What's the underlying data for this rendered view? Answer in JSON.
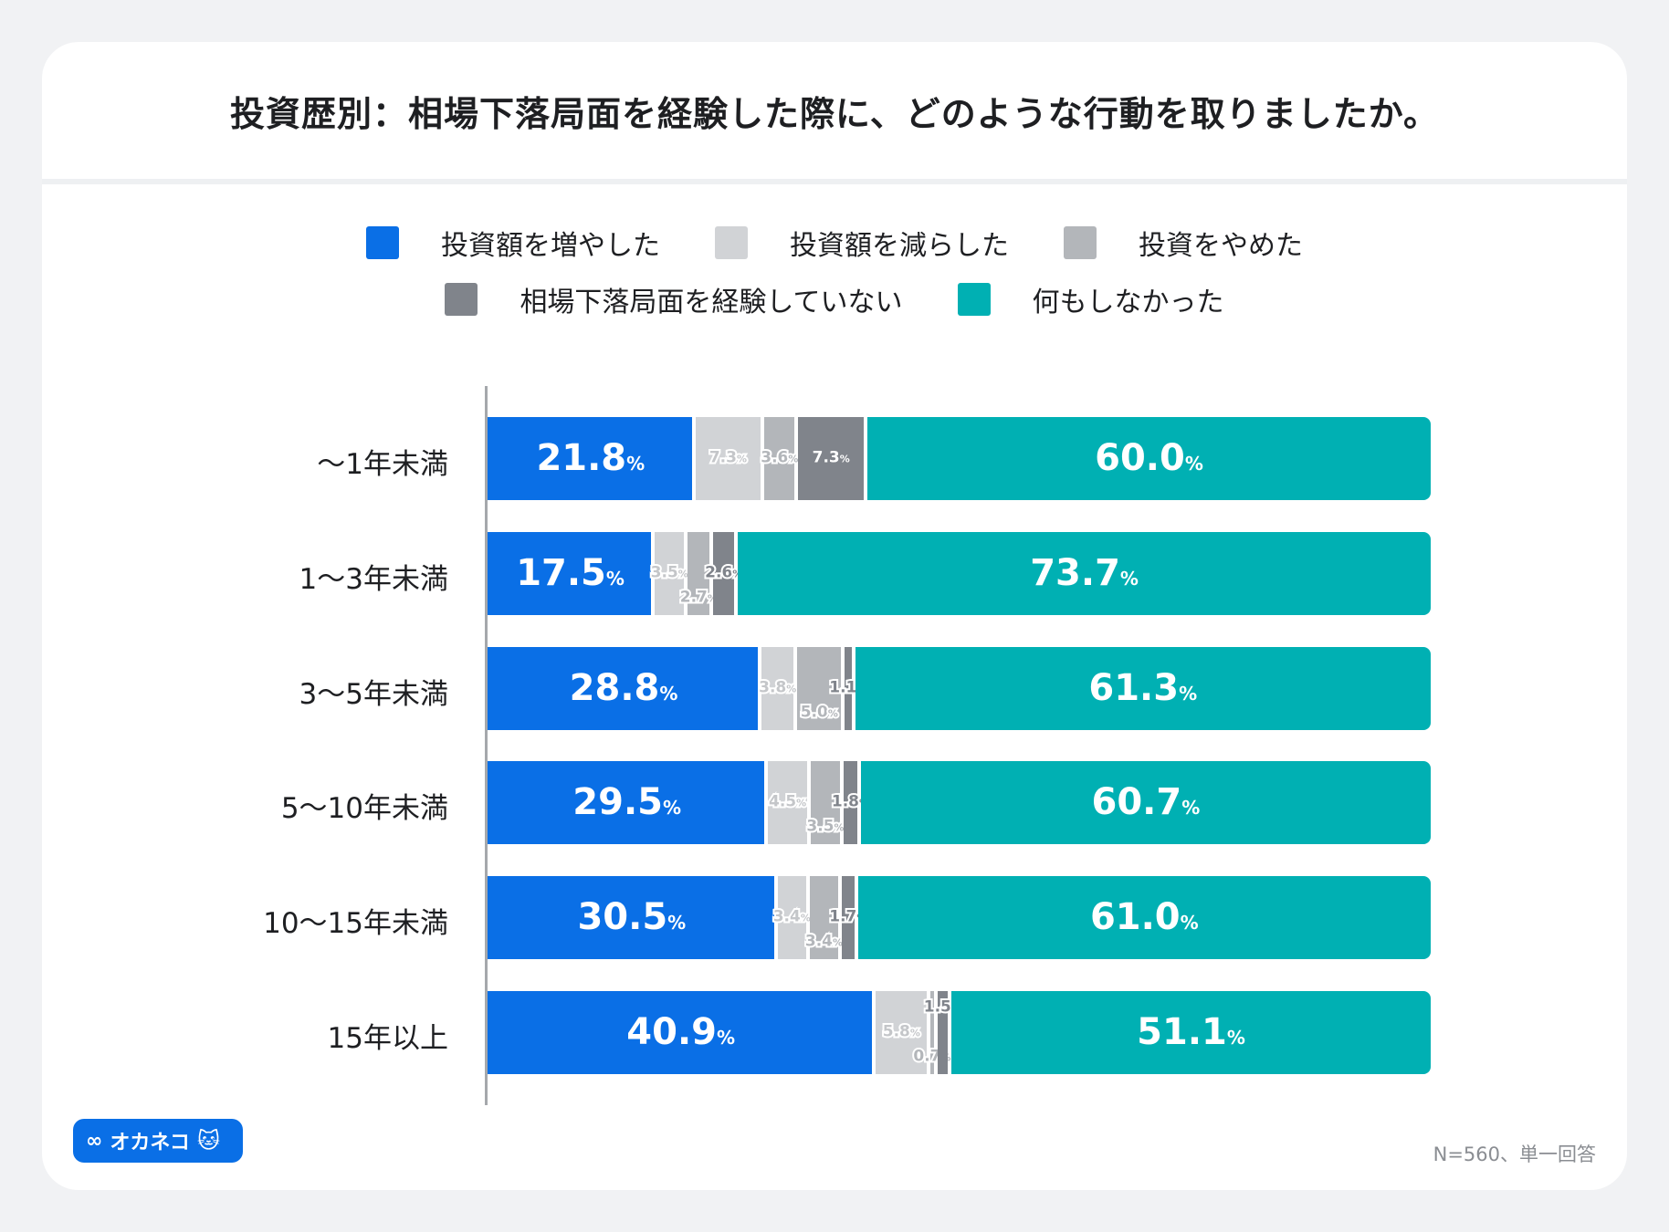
{
  "title": "投資歴別：相場下落局面を経験した際に、どのような行動を取りましたか。",
  "chart_data": {
    "type": "bar",
    "orientation": "horizontal",
    "stacked": true,
    "unit": "%",
    "legend_placement": "top",
    "categories": [
      "〜1年未満",
      "1〜3年未満",
      "3〜5年未満",
      "5〜10年未満",
      "10〜15年未満",
      "15年以上"
    ],
    "series": [
      {
        "name": "投資額を増やした",
        "color": "#0a6fe6",
        "values": [
          21.8,
          17.5,
          28.8,
          29.5,
          30.5,
          40.9
        ]
      },
      {
        "name": "投資額を減らした",
        "color": "#d1d3d6",
        "values": [
          7.3,
          3.5,
          3.8,
          4.5,
          3.4,
          5.8
        ]
      },
      {
        "name": "投資をやめた",
        "color": "#b3b6ba",
        "values": [
          3.6,
          2.7,
          5.0,
          3.5,
          3.4,
          0.7
        ]
      },
      {
        "name": "相場下落局面を経験していない",
        "color": "#80848b",
        "values": [
          7.3,
          2.6,
          1.1,
          1.8,
          1.7,
          1.5
        ]
      },
      {
        "name": "何もしなかった",
        "color": "#00b0b3",
        "values": [
          60.0,
          73.7,
          61.3,
          60.7,
          61.0,
          51.1
        ]
      }
    ]
  },
  "logo": "オカネコ",
  "footnote": "N=560、単一回答"
}
